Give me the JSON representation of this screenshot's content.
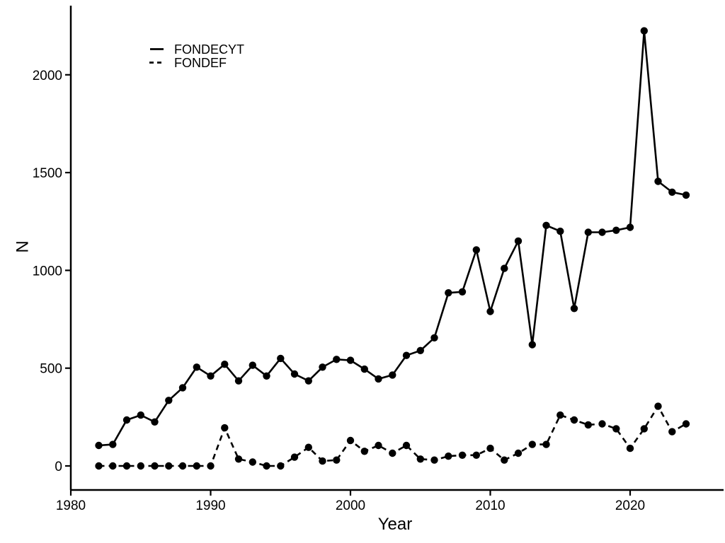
{
  "chart_data": {
    "type": "line",
    "xlabel": "Year",
    "ylabel": "N",
    "x_ticks": [
      1980,
      1990,
      2000,
      2010,
      2020
    ],
    "y_ticks": [
      0,
      500,
      1000,
      1500,
      2000
    ],
    "xlim": [
      1980,
      2026
    ],
    "ylim": [
      0,
      2350
    ],
    "grid": "off",
    "legend_position": "top-left-inside",
    "line_color": "#000000",
    "background_color": "#ffffff",
    "x": [
      1982,
      1983,
      1984,
      1985,
      1986,
      1987,
      1988,
      1989,
      1990,
      1991,
      1992,
      1993,
      1994,
      1995,
      1996,
      1997,
      1998,
      1999,
      2000,
      2001,
      2002,
      2003,
      2004,
      2005,
      2006,
      2007,
      2008,
      2009,
      2010,
      2011,
      2012,
      2013,
      2014,
      2015,
      2016,
      2017,
      2018,
      2019,
      2020,
      2021,
      2022,
      2023,
      2024
    ],
    "series": [
      {
        "name": "FONDECYT",
        "style": "solid",
        "values": [
          105,
          110,
          235,
          260,
          225,
          335,
          400,
          505,
          460,
          520,
          435,
          515,
          460,
          550,
          470,
          435,
          505,
          545,
          540,
          495,
          445,
          465,
          565,
          590,
          655,
          885,
          890,
          1105,
          790,
          1010,
          1150,
          620,
          1230,
          1200,
          805,
          1195,
          1195,
          1205,
          1220,
          2225,
          1455,
          1400,
          1385
        ]
      },
      {
        "name": "FONDEF",
        "style": "dashed",
        "values": [
          0,
          0,
          0,
          0,
          0,
          0,
          0,
          0,
          0,
          195,
          35,
          20,
          0,
          0,
          45,
          95,
          25,
          30,
          130,
          75,
          105,
          65,
          105,
          35,
          30,
          50,
          55,
          55,
          90,
          30,
          65,
          110,
          110,
          260,
          235,
          210,
          215,
          190,
          90,
          190,
          305,
          175,
          215
        ]
      }
    ]
  }
}
